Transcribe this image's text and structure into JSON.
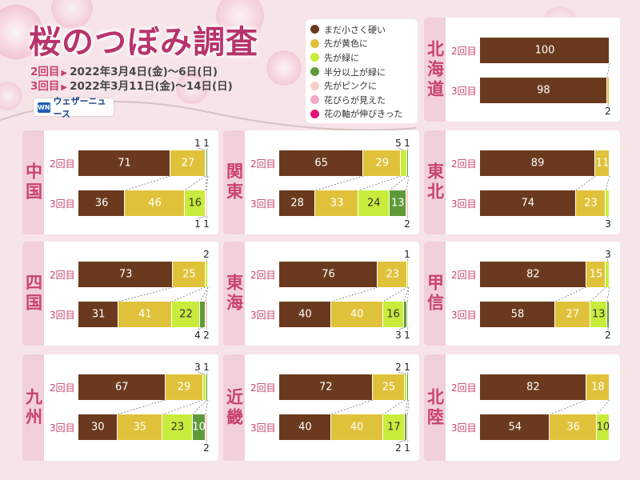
{
  "title": "桜のつぼみ調査",
  "rounds": [
    {
      "label": "2回目",
      "dates": "2022年3月4日(金)〜6日(日)"
    },
    {
      "label": "3回目",
      "dates": "2022年3月11日(金)〜14日(日)"
    }
  ],
  "logo_text": "ウェザーニュース",
  "logo_mark": "WN",
  "legend": [
    {
      "label": "まだ小さく硬い",
      "color": "#6b3a1e"
    },
    {
      "label": "先が黄色に",
      "color": "#e0c23a"
    },
    {
      "label": "先が緑に",
      "color": "#c8ec3c"
    },
    {
      "label": "半分以上が緑に",
      "color": "#5f9a3a"
    },
    {
      "label": "先がピンクに",
      "color": "#f7cfc7"
    },
    {
      "label": "花びらが見えた",
      "color": "#f2a8c6"
    },
    {
      "label": "花の軸が伸びきった",
      "color": "#e0157a"
    }
  ],
  "chart_data": {
    "type": "bar",
    "orientation": "horizontal-stacked-100",
    "stages": [
      "まだ小さく硬い",
      "先が黄色に",
      "先が緑に",
      "半分以上が緑に",
      "先がピンクに",
      "花びらが見えた",
      "花の軸が伸びきった"
    ],
    "regions": [
      {
        "name": "北海道",
        "rows": [
          {
            "label": "2回目",
            "values": [
              100,
              0,
              0,
              0,
              0,
              0,
              0
            ]
          },
          {
            "label": "3回目",
            "values": [
              98,
              2,
              0,
              0,
              0,
              0,
              0
            ]
          }
        ]
      },
      {
        "name": "中国",
        "rows": [
          {
            "label": "2回目",
            "values": [
              71,
              27,
              1,
              1,
              0,
              0,
              0
            ]
          },
          {
            "label": "3回目",
            "values": [
              36,
              46,
              16,
              1,
              1,
              0,
              0
            ]
          }
        ]
      },
      {
        "name": "関東",
        "rows": [
          {
            "label": "2回目",
            "values": [
              65,
              29,
              5,
              1,
              0,
              0,
              0
            ]
          },
          {
            "label": "3回目",
            "values": [
              28,
              33,
              24,
              13,
              2,
              0,
              0
            ]
          }
        ]
      },
      {
        "name": "東北",
        "rows": [
          {
            "label": "2回目",
            "values": [
              89,
              11,
              0,
              0,
              0,
              0,
              0
            ]
          },
          {
            "label": "3回目",
            "values": [
              74,
              23,
              3,
              0,
              0,
              0,
              0
            ]
          }
        ]
      },
      {
        "name": "四国",
        "rows": [
          {
            "label": "2回目",
            "values": [
              73,
              25,
              2,
              0,
              0,
              0,
              0
            ]
          },
          {
            "label": "3回目",
            "values": [
              31,
              41,
              22,
              4,
              2,
              0,
              0
            ]
          }
        ]
      },
      {
        "name": "東海",
        "rows": [
          {
            "label": "2回目",
            "values": [
              76,
              23,
              1,
              0,
              0,
              0,
              0
            ]
          },
          {
            "label": "3回目",
            "values": [
              40,
              40,
              16,
              3,
              1,
              0,
              0
            ]
          }
        ]
      },
      {
        "name": "甲信",
        "rows": [
          {
            "label": "2回目",
            "values": [
              82,
              15,
              3,
              0,
              0,
              0,
              0
            ]
          },
          {
            "label": "3回目",
            "values": [
              58,
              27,
              13,
              2,
              0,
              0,
              0
            ]
          }
        ]
      },
      {
        "name": "九州",
        "rows": [
          {
            "label": "2回目",
            "values": [
              67,
              29,
              3,
              1,
              0,
              0,
              0
            ]
          },
          {
            "label": "3回目",
            "values": [
              30,
              35,
              23,
              10,
              2,
              0,
              0
            ]
          }
        ]
      },
      {
        "name": "近畿",
        "rows": [
          {
            "label": "2回目",
            "values": [
              72,
              25,
              2,
              1,
              0,
              0,
              0
            ]
          },
          {
            "label": "3回目",
            "values": [
              40,
              40,
              17,
              2,
              1,
              0,
              0
            ]
          }
        ]
      },
      {
        "name": "北陸",
        "rows": [
          {
            "label": "2回目",
            "values": [
              82,
              18,
              0,
              0,
              0,
              0,
              0
            ]
          },
          {
            "label": "3回目",
            "values": [
              54,
              36,
              10,
              0,
              0,
              0,
              0
            ]
          }
        ]
      }
    ]
  }
}
